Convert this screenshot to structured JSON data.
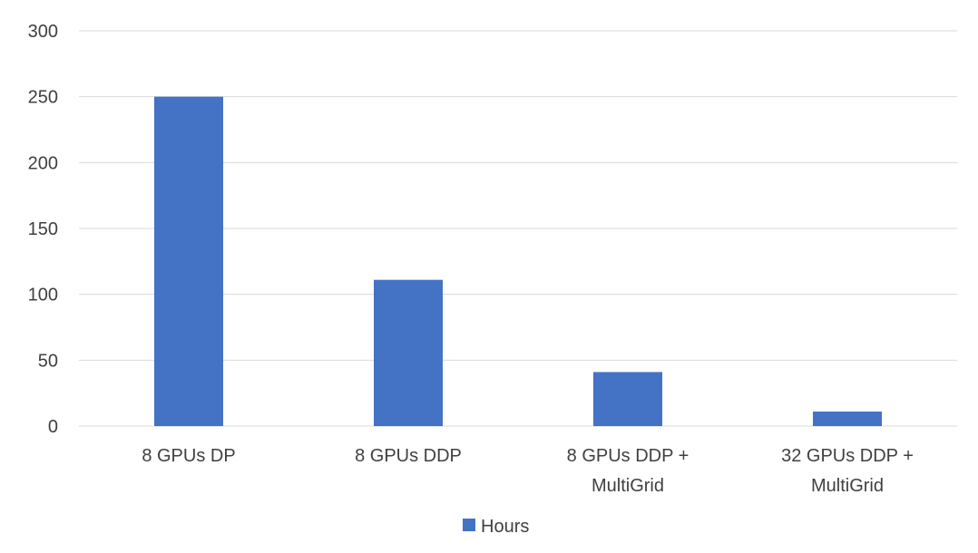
{
  "chart_data": {
    "type": "bar",
    "title": "",
    "xlabel": "",
    "ylabel": "",
    "categories": [
      [
        "8 GPUs DP"
      ],
      [
        "8 GPUs DDP"
      ],
      [
        "8 GPUs DDP +",
        "MultiGrid"
      ],
      [
        "32 GPUs DDP +",
        "MultiGrid"
      ]
    ],
    "series": [
      {
        "name": "Hours",
        "color": "#4472c4",
        "values": [
          250,
          111,
          41,
          11
        ]
      }
    ],
    "ylim": [
      0,
      300
    ],
    "yticks": [
      0,
      50,
      100,
      150,
      200,
      250,
      300
    ],
    "grid": true,
    "legend_position": "bottom"
  }
}
